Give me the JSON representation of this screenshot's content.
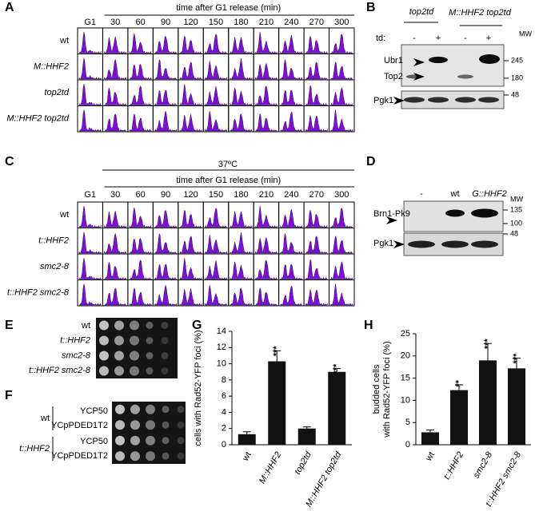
{
  "panel_A": {
    "label": "A",
    "header": "time after G1 release (min)",
    "columns": [
      "G1",
      "30",
      "60",
      "90",
      "120",
      "150",
      "180",
      "210",
      "240",
      "270",
      "300"
    ],
    "rows": [
      "wt",
      "M::HHF2",
      "top2td",
      "M::HHF2 top2td"
    ]
  },
  "panel_B": {
    "label": "B",
    "lane_groups": [
      "top2td",
      "M::HHF2 top2td"
    ],
    "td_label": "td:",
    "lanes": [
      "-",
      "+",
      "-",
      "+"
    ],
    "mw_label": "MW",
    "markers": [
      "245",
      "180",
      "48"
    ],
    "bands": [
      "Ubr1",
      "Top2",
      "Pgk1"
    ]
  },
  "panel_C": {
    "label": "C",
    "temperature": "37ºC",
    "header": "time after G1 release (min)",
    "columns": [
      "G1",
      "30",
      "60",
      "90",
      "120",
      "150",
      "180",
      "210",
      "240",
      "270",
      "300"
    ],
    "rows": [
      "wt",
      "t::HHF2",
      "smc2-8",
      "t::HHF2 smc2-8"
    ]
  },
  "panel_D": {
    "label": "D",
    "lanes": [
      "-",
      "wt",
      "G::HHF2"
    ],
    "mw_label": "MW",
    "markers": [
      "135",
      "100",
      "48"
    ],
    "bands": [
      "Brn1-Pk9",
      "Pgk1"
    ]
  },
  "panel_E": {
    "label": "E",
    "rows": [
      "wt",
      "t::HHF2",
      "smc2-8",
      "t::HHF2 smc2-8"
    ]
  },
  "panel_F": {
    "label": "F",
    "groups": [
      {
        "name": "wt",
        "plasmids": [
          "YCP50",
          "YCpPDED1T2"
        ]
      },
      {
        "name": "t::HHF2",
        "plasmids": [
          "YCP50",
          "YCpPDED1T2"
        ]
      }
    ]
  },
  "chart_data": [
    {
      "type": "bar",
      "label": "G",
      "ylabel": [
        "cells with Rad52-YFP foci (%)"
      ],
      "categories": [
        "wt",
        "M::HHF2",
        "top2td",
        "M::HHF2 top2td"
      ],
      "values": [
        1.3,
        10.3,
        2.0,
        9.0
      ],
      "errors": [
        0.3,
        1.3,
        0.2,
        0.4
      ],
      "significance": [
        null,
        "***",
        null,
        "***"
      ],
      "color": "#111111",
      "ylim": [
        0,
        14
      ],
      "yticks": [
        0,
        2,
        4,
        6,
        8,
        10,
        12,
        14
      ]
    },
    {
      "type": "bar",
      "label": "H",
      "ylabel": [
        "budded cells",
        "with Rad52-YFP foci (%)"
      ],
      "categories": [
        "wt",
        "t::HHF2",
        "smc2-8",
        "t::HHF2 smc2-8"
      ],
      "values": [
        2.8,
        12.3,
        19.0,
        17.2
      ],
      "errors": [
        0.5,
        1.2,
        3.8,
        2.3
      ],
      "significance": [
        null,
        "**",
        "***",
        "***"
      ],
      "color": "#111111",
      "ylim": [
        0,
        25
      ],
      "yticks": [
        0,
        5,
        10,
        15,
        20,
        25
      ]
    }
  ]
}
